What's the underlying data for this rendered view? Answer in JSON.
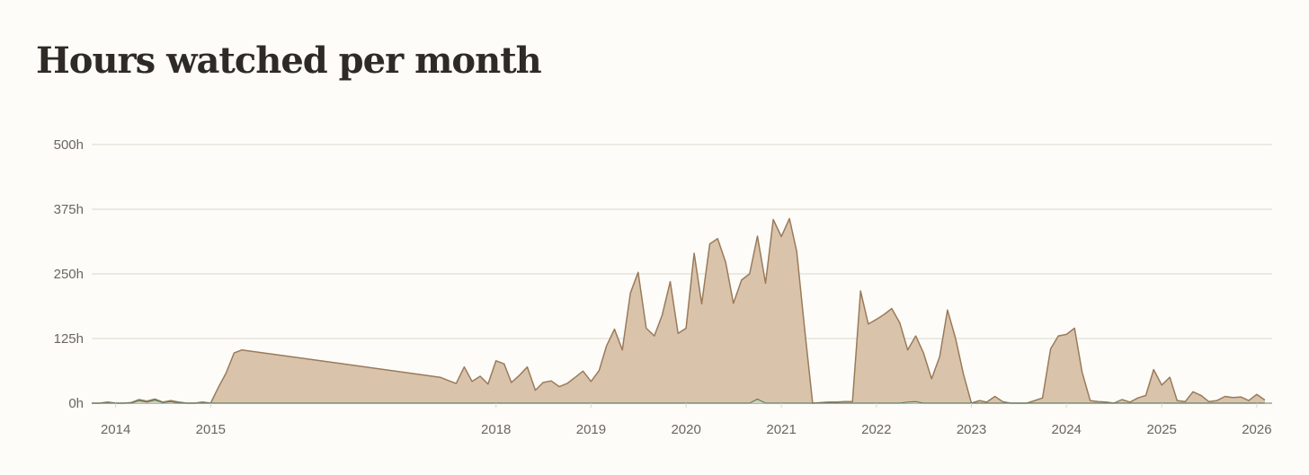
{
  "chart_data": {
    "type": "area",
    "title": "Hours watched per month",
    "xlabel": "",
    "ylabel": "",
    "ylim": [
      0,
      500
    ],
    "y_ticks": [
      {
        "value": 0,
        "label": "0h"
      },
      {
        "value": 125,
        "label": "125h"
      },
      {
        "value": 250,
        "label": "250h"
      },
      {
        "value": 375,
        "label": "375h"
      },
      {
        "value": 500,
        "label": "500h"
      }
    ],
    "x_ticks": [
      {
        "date": "2014-01",
        "label": "2014"
      },
      {
        "date": "2015-01",
        "label": "2015"
      },
      {
        "date": "2018-01",
        "label": "2018"
      },
      {
        "date": "2019-01",
        "label": "2019"
      },
      {
        "date": "2020-01",
        "label": "2020"
      },
      {
        "date": "2021-01",
        "label": "2021"
      },
      {
        "date": "2022-01",
        "label": "2022"
      },
      {
        "date": "2023-01",
        "label": "2023"
      },
      {
        "date": "2024-01",
        "label": "2024"
      },
      {
        "date": "2025-01",
        "label": "2025"
      },
      {
        "date": "2026-01",
        "label": "2026"
      }
    ],
    "grid": true,
    "colors": {
      "fill": "#d9c4ab",
      "line": "#9a7a5a",
      "secondary_line": "#5f7f68",
      "grid": "#d9d8cc"
    },
    "series": [
      {
        "points": [
          [
            "2013-10",
            0
          ],
          [
            "2013-11",
            0
          ],
          [
            "2013-12",
            2
          ],
          [
            "2014-01",
            0
          ],
          [
            "2014-02",
            0
          ],
          [
            "2014-03",
            1
          ],
          [
            "2014-04",
            7
          ],
          [
            "2014-05",
            4
          ],
          [
            "2014-06",
            8
          ],
          [
            "2014-07",
            2
          ],
          [
            "2014-08",
            5
          ],
          [
            "2014-09",
            2
          ],
          [
            "2014-10",
            0
          ],
          [
            "2014-11",
            0
          ],
          [
            "2014-12",
            2
          ],
          [
            "2015-01",
            0
          ],
          [
            "2015-02",
            32
          ],
          [
            "2015-03",
            58
          ],
          [
            "2015-04",
            97
          ],
          [
            "2015-05",
            103
          ],
          [
            "2017-06",
            50
          ],
          [
            "2017-07",
            44
          ],
          [
            "2017-08",
            38
          ],
          [
            "2017-09",
            70
          ],
          [
            "2017-10",
            42
          ],
          [
            "2017-11",
            52
          ],
          [
            "2017-12",
            37
          ],
          [
            "2018-01",
            82
          ],
          [
            "2018-02",
            76
          ],
          [
            "2018-03",
            40
          ],
          [
            "2018-04",
            54
          ],
          [
            "2018-05",
            70
          ],
          [
            "2018-06",
            25
          ],
          [
            "2018-07",
            40
          ],
          [
            "2018-08",
            43
          ],
          [
            "2018-09",
            32
          ],
          [
            "2018-10",
            38
          ],
          [
            "2018-11",
            50
          ],
          [
            "2018-12",
            62
          ],
          [
            "2019-01",
            42
          ],
          [
            "2019-02",
            63
          ],
          [
            "2019-03",
            110
          ],
          [
            "2019-04",
            143
          ],
          [
            "2019-05",
            103
          ],
          [
            "2019-06",
            213
          ],
          [
            "2019-07",
            253
          ],
          [
            "2019-08",
            145
          ],
          [
            "2019-09",
            130
          ],
          [
            "2019-10",
            170
          ],
          [
            "2019-11",
            235
          ],
          [
            "2019-12",
            135
          ],
          [
            "2020-01",
            145
          ],
          [
            "2020-02",
            290
          ],
          [
            "2020-03",
            192
          ],
          [
            "2020-04",
            308
          ],
          [
            "2020-05",
            318
          ],
          [
            "2020-06",
            272
          ],
          [
            "2020-07",
            193
          ],
          [
            "2020-08",
            238
          ],
          [
            "2020-09",
            250
          ],
          [
            "2020-10",
            323
          ],
          [
            "2020-11",
            232
          ],
          [
            "2020-12",
            355
          ],
          [
            "2021-01",
            322
          ],
          [
            "2021-02",
            357
          ],
          [
            "2021-03",
            293
          ],
          [
            "2021-04",
            140
          ],
          [
            "2021-05",
            0
          ],
          [
            "2021-06",
            1
          ],
          [
            "2021-07",
            2
          ],
          [
            "2021-08",
            2
          ],
          [
            "2021-09",
            3
          ],
          [
            "2021-10",
            3
          ],
          [
            "2021-11",
            217
          ],
          [
            "2021-12",
            153
          ],
          [
            "2022-01",
            162
          ],
          [
            "2022-02",
            172
          ],
          [
            "2022-03",
            183
          ],
          [
            "2022-04",
            155
          ],
          [
            "2022-05",
            103
          ],
          [
            "2022-06",
            130
          ],
          [
            "2022-07",
            97
          ],
          [
            "2022-08",
            47
          ],
          [
            "2022-09",
            90
          ],
          [
            "2022-10",
            180
          ],
          [
            "2022-11",
            125
          ],
          [
            "2022-12",
            57
          ],
          [
            "2023-01",
            0
          ],
          [
            "2023-02",
            5
          ],
          [
            "2023-03",
            2
          ],
          [
            "2023-04",
            13
          ],
          [
            "2023-05",
            3
          ],
          [
            "2023-06",
            0
          ],
          [
            "2023-07",
            0
          ],
          [
            "2023-08",
            0
          ],
          [
            "2023-09",
            5
          ],
          [
            "2023-10",
            10
          ],
          [
            "2023-11",
            105
          ],
          [
            "2023-12",
            130
          ],
          [
            "2024-01",
            133
          ],
          [
            "2024-02",
            145
          ],
          [
            "2024-03",
            60
          ],
          [
            "2024-04",
            5
          ],
          [
            "2024-05",
            3
          ],
          [
            "2024-06",
            2
          ],
          [
            "2024-07",
            0
          ],
          [
            "2024-08",
            7
          ],
          [
            "2024-09",
            2
          ],
          [
            "2024-10",
            10
          ],
          [
            "2024-11",
            15
          ],
          [
            "2024-12",
            65
          ],
          [
            "2025-01",
            35
          ],
          [
            "2025-02",
            50
          ],
          [
            "2025-03",
            5
          ],
          [
            "2025-04",
            3
          ],
          [
            "2025-05",
            22
          ],
          [
            "2025-06",
            15
          ],
          [
            "2025-07",
            3
          ],
          [
            "2025-08",
            5
          ],
          [
            "2025-09",
            13
          ],
          [
            "2025-10",
            11
          ],
          [
            "2025-11",
            12
          ],
          [
            "2025-12",
            5
          ],
          [
            "2026-01",
            17
          ],
          [
            "2026-02",
            6
          ]
        ]
      },
      {
        "points": [
          [
            "2013-10",
            0
          ],
          [
            "2014-03",
            0
          ],
          [
            "2014-04",
            5
          ],
          [
            "2014-05",
            2
          ],
          [
            "2014-06",
            6
          ],
          [
            "2014-07",
            1
          ],
          [
            "2014-08",
            3
          ],
          [
            "2014-09",
            0
          ],
          [
            "2020-09",
            0
          ],
          [
            "2020-10",
            8
          ],
          [
            "2020-11",
            0
          ],
          [
            "2022-04",
            0
          ],
          [
            "2022-05",
            2
          ],
          [
            "2022-06",
            3
          ],
          [
            "2022-07",
            0
          ],
          [
            "2026-02",
            0
          ]
        ]
      }
    ]
  }
}
